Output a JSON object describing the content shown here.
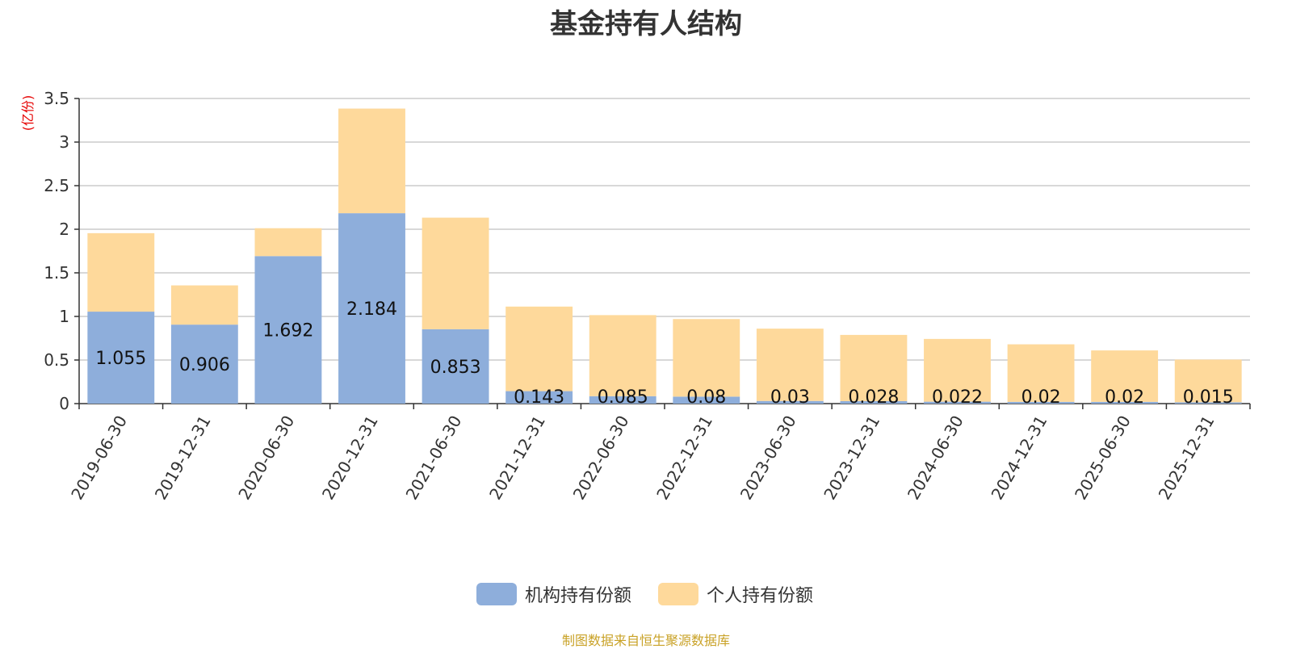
{
  "chart_data": {
    "type": "bar",
    "stacked": true,
    "title": "基金持有人结构",
    "ylabel": "(亿份)",
    "ylim": [
      0,
      3.5
    ],
    "yticks": [
      "0",
      "0.5",
      "1",
      "1.5",
      "2",
      "2.5",
      "3",
      "3.5"
    ],
    "categories": [
      "2019-06-30",
      "2019-12-31",
      "2020-06-30",
      "2020-12-31",
      "2021-06-30",
      "2021-12-31",
      "2022-06-30",
      "2022-12-31",
      "2023-06-30",
      "2023-12-31",
      "2024-06-30",
      "2024-12-31",
      "2025-06-30",
      "2025-12-31"
    ],
    "series": [
      {
        "name": "机构持有份额",
        "color": "#8eaedb",
        "values": [
          1.055,
          0.906,
          1.692,
          2.184,
          0.853,
          0.143,
          0.085,
          0.08,
          0.03,
          0.028,
          0.022,
          0.02,
          0.02,
          0.015
        ],
        "labels": [
          "1.055",
          "0.906",
          "1.692",
          "2.184",
          "0.853",
          "0.143",
          "0.085",
          "0.08",
          "0.03",
          "0.028",
          "0.022",
          "0.02",
          "0.02",
          "0.015"
        ]
      },
      {
        "name": "个人持有份额",
        "color": "#fed99b",
        "values": [
          0.9,
          0.45,
          0.32,
          1.2,
          1.28,
          0.97,
          0.93,
          0.89,
          0.83,
          0.76,
          0.72,
          0.66,
          0.59,
          0.49
        ]
      }
    ],
    "legend_position": "bottom-center",
    "grid": true
  },
  "footer": {
    "source": "制图数据来自恒生聚源数据库"
  }
}
